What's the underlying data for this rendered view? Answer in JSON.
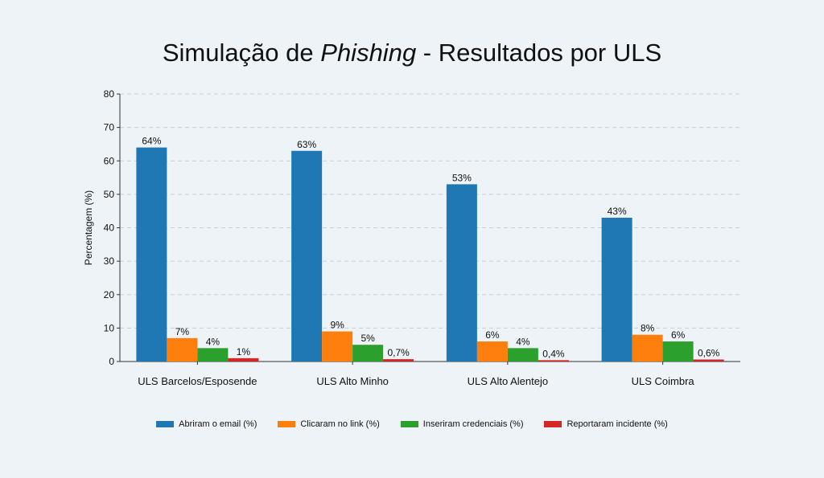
{
  "title": {
    "prefix": "Simulação de ",
    "emphasis": "Phishing",
    "suffix": " - Resultados por ULS"
  },
  "chart_data": {
    "type": "bar",
    "title": "Simulação de Phishing - Resultados por ULS",
    "ylabel": "Percentagem (%)",
    "xlabel": "",
    "ylim": [
      0,
      80
    ],
    "yticks": [
      0,
      10,
      20,
      30,
      40,
      50,
      60,
      70,
      80
    ],
    "grid": "horizontal-dashed",
    "legend_position": "bottom",
    "categories": [
      "ULS Barcelos/Esposende",
      "ULS Alto Minho",
      "ULS Alto Alentejo",
      "ULS Coimbra"
    ],
    "series": [
      {
        "name": "Abriram o email (%)",
        "color": "#1f77b4",
        "values": [
          64,
          63,
          53,
          43
        ],
        "labels": [
          "64%",
          "63%",
          "53%",
          "43%"
        ]
      },
      {
        "name": "Clicaram no link (%)",
        "color": "#ff7f0e",
        "values": [
          7,
          9,
          6,
          8
        ],
        "labels": [
          "7%",
          "9%",
          "6%",
          "8%"
        ]
      },
      {
        "name": "Inseriram credenciais (%)",
        "color": "#2ca02c",
        "values": [
          4,
          5,
          4,
          6
        ],
        "labels": [
          "4%",
          "5%",
          "4%",
          "6%"
        ]
      },
      {
        "name": "Reportaram incidente (%)",
        "color": "#d62728",
        "values": [
          1,
          0.7,
          0.4,
          0.6
        ],
        "labels": [
          "1%",
          "0,7%",
          "0,4%",
          "0,6%"
        ]
      }
    ]
  }
}
